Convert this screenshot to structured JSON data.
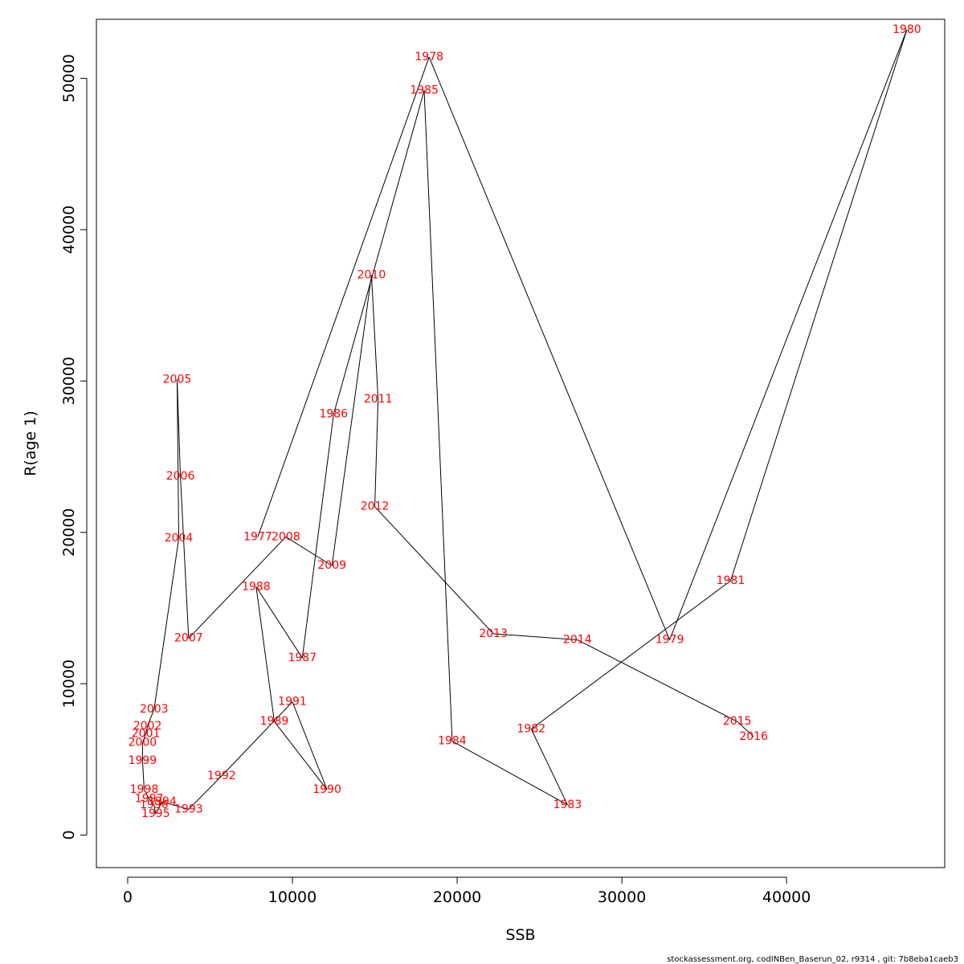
{
  "chart_data": {
    "type": "line",
    "xlabel": "SSB",
    "ylabel": "R(age 1)",
    "xlim": [
      -1900,
      49600
    ],
    "ylim": [
      -2150,
      53900
    ],
    "x_ticks": [
      0,
      10000,
      20000,
      30000,
      40000
    ],
    "y_ticks": [
      0,
      10000,
      20000,
      30000,
      40000,
      50000
    ],
    "x_tick_labels": [
      "0",
      "10000",
      "20000",
      "30000",
      "40000"
    ],
    "y_tick_labels": [
      "0",
      "10000",
      "20000",
      "30000",
      "40000",
      "50000"
    ],
    "line_color": "#000000",
    "label_color": "#ff0000",
    "points": [
      {
        "year": "1977",
        "x": 7900,
        "y": 19700
      },
      {
        "year": "1978",
        "x": 18300,
        "y": 51400
      },
      {
        "year": "1979",
        "x": 32900,
        "y": 12900
      },
      {
        "year": "1980",
        "x": 47300,
        "y": 53200
      },
      {
        "year": "1981",
        "x": 36600,
        "y": 16800
      },
      {
        "year": "1982",
        "x": 24500,
        "y": 7000
      },
      {
        "year": "1983",
        "x": 26700,
        "y": 2000
      },
      {
        "year": "1984",
        "x": 19700,
        "y": 6200
      },
      {
        "year": "1985",
        "x": 18000,
        "y": 49200
      },
      {
        "year": "1986",
        "x": 12500,
        "y": 27800
      },
      {
        "year": "1987",
        "x": 10600,
        "y": 11700
      },
      {
        "year": "1988",
        "x": 7800,
        "y": 16400
      },
      {
        "year": "1989",
        "x": 8900,
        "y": 7500
      },
      {
        "year": "1990",
        "x": 12100,
        "y": 3000
      },
      {
        "year": "1991",
        "x": 10000,
        "y": 8800
      },
      {
        "year": "1992",
        "x": 5700,
        "y": 3900
      },
      {
        "year": "1993",
        "x": 3700,
        "y": 1700
      },
      {
        "year": "1994",
        "x": 2100,
        "y": 2200
      },
      {
        "year": "1995",
        "x": 1700,
        "y": 1400
      },
      {
        "year": "1996",
        "x": 1600,
        "y": 2000
      },
      {
        "year": "1997",
        "x": 1300,
        "y": 2400
      },
      {
        "year": "1998",
        "x": 1000,
        "y": 3000
      },
      {
        "year": "1999",
        "x": 900,
        "y": 4900
      },
      {
        "year": "2000",
        "x": 900,
        "y": 6100
      },
      {
        "year": "2001",
        "x": 1100,
        "y": 6700
      },
      {
        "year": "2002",
        "x": 1200,
        "y": 7200
      },
      {
        "year": "2003",
        "x": 1600,
        "y": 8300
      },
      {
        "year": "2004",
        "x": 3100,
        "y": 19600
      },
      {
        "year": "2005",
        "x": 3000,
        "y": 30100
      },
      {
        "year": "2006",
        "x": 3200,
        "y": 23700
      },
      {
        "year": "2007",
        "x": 3700,
        "y": 13000
      },
      {
        "year": "2008",
        "x": 9600,
        "y": 19700
      },
      {
        "year": "2009",
        "x": 12400,
        "y": 17800
      },
      {
        "year": "2010",
        "x": 14800,
        "y": 37000
      },
      {
        "year": "2011",
        "x": 15200,
        "y": 28800
      },
      {
        "year": "2012",
        "x": 15000,
        "y": 21700
      },
      {
        "year": "2013",
        "x": 22200,
        "y": 13300
      },
      {
        "year": "2014",
        "x": 27300,
        "y": 12900
      },
      {
        "year": "2015",
        "x": 37000,
        "y": 7500
      },
      {
        "year": "2016",
        "x": 38000,
        "y": 6500
      }
    ]
  },
  "footer": {
    "text": "stockassessment.org, codINBen_Baserun_02, r9314 , git: 7b8eba1caeb3"
  }
}
